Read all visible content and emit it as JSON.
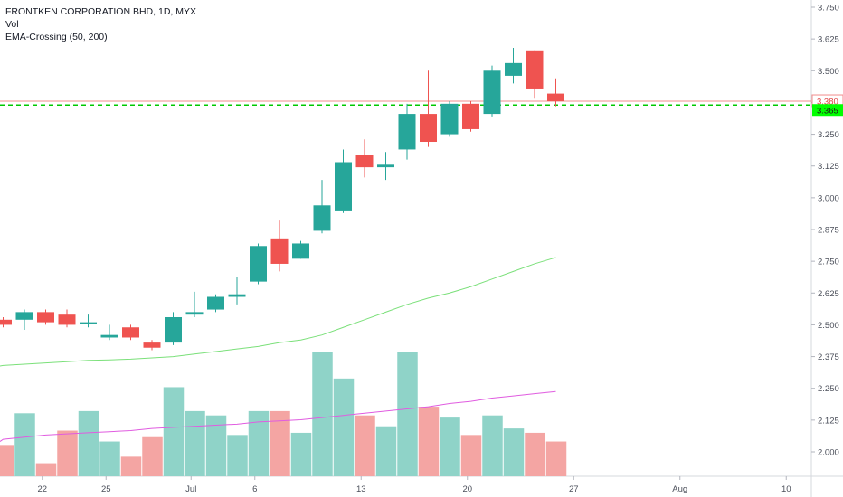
{
  "legend": {
    "symbol": "FRONTKEN CORPORATION BHD, 1D, MYX",
    "volume": "Vol",
    "indicator": "EMA-Crossing (50, 200)"
  },
  "colors": {
    "up": "#26a69a",
    "down": "#ef5350",
    "vol_up": "#8fd3c8",
    "vol_down": "#f4a5a3",
    "ema50": "#7be07a",
    "vol_ma": "#e05ce0",
    "price_line": "#f28c8c",
    "ema_line": "#00c800",
    "last_label_bg": "#ffffff",
    "ema_label_bg": "#00ff00"
  },
  "price_labels": {
    "last": "3.380",
    "ema": "3.365"
  },
  "chart_data": {
    "type": "candlestick",
    "x_ticks": [
      "22",
      "25",
      "Jul",
      "6",
      "13",
      "20",
      "27",
      "Aug",
      "10"
    ],
    "y_ticks": [
      "3.750",
      "3.625",
      "3.500",
      "3.375",
      "3.250",
      "3.125",
      "3.000",
      "2.875",
      "2.750",
      "2.625",
      "2.500",
      "2.375",
      "2.250",
      "2.125",
      "2.000"
    ],
    "ylim": [
      1.93,
      3.76
    ],
    "candles": [
      {
        "o": 2.52,
        "h": 2.53,
        "l": 2.49,
        "c": 2.5
      },
      {
        "o": 2.52,
        "h": 2.56,
        "l": 2.48,
        "c": 2.55
      },
      {
        "o": 2.55,
        "h": 2.56,
        "l": 2.5,
        "c": 2.51
      },
      {
        "o": 2.54,
        "h": 2.56,
        "l": 2.49,
        "c": 2.5
      },
      {
        "o": 2.51,
        "h": 2.54,
        "l": 2.49,
        "c": 2.51
      },
      {
        "o": 2.45,
        "h": 2.5,
        "l": 2.44,
        "c": 2.46
      },
      {
        "o": 2.49,
        "h": 2.5,
        "l": 2.44,
        "c": 2.45
      },
      {
        "o": 2.43,
        "h": 2.44,
        "l": 2.4,
        "c": 2.41
      },
      {
        "o": 2.43,
        "h": 2.55,
        "l": 2.42,
        "c": 2.53
      },
      {
        "o": 2.54,
        "h": 2.63,
        "l": 2.53,
        "c": 2.55
      },
      {
        "o": 2.56,
        "h": 2.62,
        "l": 2.55,
        "c": 2.61
      },
      {
        "o": 2.61,
        "h": 2.69,
        "l": 2.58,
        "c": 2.62
      },
      {
        "o": 2.67,
        "h": 2.82,
        "l": 2.66,
        "c": 2.81
      },
      {
        "o": 2.84,
        "h": 2.91,
        "l": 2.71,
        "c": 2.74
      },
      {
        "o": 2.76,
        "h": 2.83,
        "l": 2.76,
        "c": 2.82
      },
      {
        "o": 2.87,
        "h": 3.07,
        "l": 2.86,
        "c": 2.97
      },
      {
        "o": 2.95,
        "h": 3.19,
        "l": 2.94,
        "c": 3.14
      },
      {
        "o": 3.17,
        "h": 3.23,
        "l": 3.08,
        "c": 3.12
      },
      {
        "o": 3.12,
        "h": 3.18,
        "l": 3.07,
        "c": 3.13
      },
      {
        "o": 3.19,
        "h": 3.37,
        "l": 3.15,
        "c": 3.33
      },
      {
        "o": 3.33,
        "h": 3.5,
        "l": 3.2,
        "c": 3.22
      },
      {
        "o": 3.25,
        "h": 3.38,
        "l": 3.24,
        "c": 3.37
      },
      {
        "o": 3.37,
        "h": 3.38,
        "l": 3.26,
        "c": 3.27
      },
      {
        "o": 3.33,
        "h": 3.52,
        "l": 3.32,
        "c": 3.5
      },
      {
        "o": 3.48,
        "h": 3.59,
        "l": 3.45,
        "c": 3.53
      },
      {
        "o": 3.58,
        "h": 3.58,
        "l": 3.39,
        "c": 3.43
      },
      {
        "o": 3.41,
        "h": 3.47,
        "l": 3.36,
        "c": 3.38
      }
    ],
    "volume": [
      14,
      29,
      6,
      21,
      30,
      16,
      9,
      18,
      41,
      30,
      28,
      19,
      30,
      30,
      20,
      57,
      45,
      28,
      23,
      57,
      32,
      27,
      19,
      28,
      22,
      20,
      16
    ],
    "ema50": [
      2.34,
      2.345,
      2.35,
      2.355,
      2.36,
      2.362,
      2.365,
      2.37,
      2.375,
      2.385,
      2.395,
      2.405,
      2.415,
      2.43,
      2.44,
      2.46,
      2.49,
      2.52,
      2.55,
      2.58,
      2.605,
      2.625,
      2.65,
      2.68,
      2.71,
      2.74,
      2.765
    ],
    "vol_ma": [
      17,
      18,
      19,
      19.5,
      20,
      20.5,
      21,
      22,
      22.5,
      23,
      23.5,
      24,
      25,
      25.5,
      26,
      27,
      28,
      29,
      30,
      31,
      32,
      33.5,
      34.5,
      36,
      37,
      38,
      39
    ],
    "price_line_value": 3.38,
    "ema_line_value": 3.365
  }
}
